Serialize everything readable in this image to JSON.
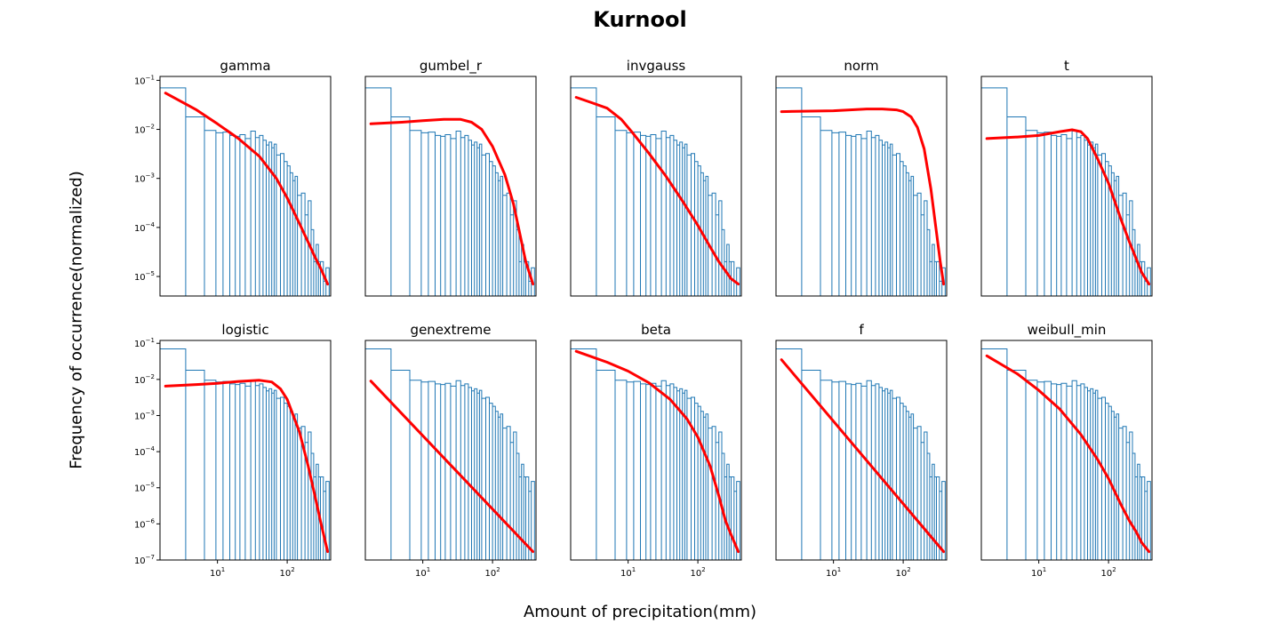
{
  "figure": {
    "title": "Kurnool",
    "xlabel": "Amount of precipitation(mm)",
    "ylabel": "Frequency of occurrence(normalized)"
  },
  "colors": {
    "hist": "#1f77b4",
    "fit": "#ff0000",
    "axis": "#000000"
  },
  "chart_data": {
    "type": "line",
    "xscale": "log",
    "yscale": "log",
    "xlim": [
      1.5,
      420
    ],
    "rows": [
      {
        "ylim": [
          4e-06,
          0.12
        ],
        "yticks": [
          0.1,
          0.01,
          0.001,
          0.0001,
          1e-05
        ],
        "ytick_labels": [
          [
            "10",
            "−1"
          ],
          [
            "10",
            "−2"
          ],
          [
            "10",
            "−3"
          ],
          [
            "10",
            "−4"
          ],
          [
            "10",
            "−5"
          ]
        ]
      },
      {
        "ylim": [
          1e-07,
          0.12
        ],
        "yticks": [
          0.1,
          0.01,
          0.001,
          0.0001,
          1e-05,
          1e-06,
          1e-07
        ],
        "ytick_labels": [
          [
            "10",
            "−1"
          ],
          [
            "10",
            "−2"
          ],
          [
            "10",
            "−3"
          ],
          [
            "10",
            "−4"
          ],
          [
            "10",
            "−5"
          ],
          [
            "10",
            "−6"
          ],
          [
            "10",
            "−7"
          ]
        ]
      }
    ],
    "xticks": [
      10,
      100
    ],
    "xtick_labels": [
      [
        "10",
        "1"
      ],
      [
        "10",
        "2"
      ]
    ],
    "histogram": {
      "edges": [
        1.5,
        3.5,
        6.5,
        9.5,
        12,
        15,
        18,
        21,
        25,
        30,
        35,
        40,
        45,
        50,
        55,
        60,
        65,
        70,
        80,
        90,
        100,
        110,
        120,
        130,
        140,
        160,
        180,
        200,
        220,
        240,
        260,
        280,
        300,
        330,
        360,
        400
      ],
      "values": [
        0.07,
        0.018,
        0.0095,
        0.0085,
        0.0088,
        0.0075,
        0.0072,
        0.0078,
        0.0065,
        0.0092,
        0.0068,
        0.0075,
        0.006,
        0.0048,
        0.0055,
        0.0042,
        0.005,
        0.003,
        0.0032,
        0.0022,
        0.0018,
        0.0013,
        0.0009,
        0.0011,
        0.00045,
        0.0005,
        0.00018,
        0.00035,
        9e-05,
        2e-05,
        4.5e-05,
        2e-05,
        2e-05,
        8e-06,
        1.5e-05
      ]
    },
    "panels": [
      {
        "name": "gamma",
        "row": 0,
        "col": 0,
        "fit": {
          "x": [
            1.8,
            5,
            10,
            20,
            40,
            70,
            100,
            150,
            200,
            250,
            300,
            380
          ],
          "y": [
            0.055,
            0.025,
            0.013,
            0.0065,
            0.0028,
            0.001,
            0.0004,
            0.00012,
            5e-05,
            2.5e-05,
            1.5e-05,
            7e-06
          ]
        }
      },
      {
        "name": "gumbel_r",
        "row": 0,
        "col": 1,
        "fit": {
          "x": [
            1.8,
            5,
            10,
            20,
            35,
            50,
            70,
            100,
            150,
            200,
            300,
            380
          ],
          "y": [
            0.013,
            0.014,
            0.015,
            0.016,
            0.016,
            0.014,
            0.01,
            0.0045,
            0.0012,
            0.0003,
            2e-05,
            7e-06
          ]
        }
      },
      {
        "name": "invgauss",
        "row": 0,
        "col": 2,
        "fit": {
          "x": [
            1.8,
            3,
            5,
            8,
            12,
            20,
            35,
            60,
            100,
            150,
            200,
            300,
            380
          ],
          "y": [
            0.045,
            0.035,
            0.027,
            0.016,
            0.008,
            0.0032,
            0.0011,
            0.00035,
            0.00011,
            4e-05,
            2e-05,
            9e-06,
            7e-06
          ]
        }
      },
      {
        "name": "norm",
        "row": 0,
        "col": 3,
        "fit": {
          "x": [
            1.8,
            10,
            30,
            50,
            80,
            100,
            130,
            160,
            200,
            250,
            300,
            340,
            380
          ],
          "y": [
            0.023,
            0.024,
            0.026,
            0.026,
            0.025,
            0.023,
            0.018,
            0.011,
            0.004,
            0.0006,
            8e-05,
            2e-05,
            7e-06
          ]
        }
      },
      {
        "name": "t",
        "row": 0,
        "col": 4,
        "fit": {
          "x": [
            1.8,
            5,
            10,
            20,
            30,
            40,
            50,
            70,
            100,
            150,
            200,
            300,
            380
          ],
          "y": [
            0.0065,
            0.007,
            0.0075,
            0.009,
            0.0098,
            0.009,
            0.0065,
            0.0025,
            0.0008,
            0.00015,
            5e-05,
            1.2e-05,
            7e-06
          ]
        }
      },
      {
        "name": "logistic",
        "row": 1,
        "col": 0,
        "fit": {
          "x": [
            1.8,
            5,
            10,
            20,
            40,
            60,
            80,
            100,
            150,
            200,
            250,
            300,
            380
          ],
          "y": [
            0.0065,
            0.0072,
            0.0078,
            0.0088,
            0.0095,
            0.0085,
            0.0055,
            0.0028,
            0.00035,
            4e-05,
            6e-06,
            1.2e-06,
            1.7e-07
          ]
        }
      },
      {
        "name": "genextreme",
        "row": 1,
        "col": 1,
        "fit": {
          "x": [
            1.8,
            380
          ],
          "y": [
            0.009,
            1.7e-07
          ]
        }
      },
      {
        "name": "beta",
        "row": 1,
        "col": 2,
        "fit": {
          "x": [
            1.8,
            5,
            10,
            20,
            40,
            70,
            100,
            150,
            200,
            250,
            300,
            380
          ],
          "y": [
            0.06,
            0.03,
            0.017,
            0.008,
            0.0028,
            0.0008,
            0.00025,
            4e-05,
            6e-06,
            1.2e-06,
            5e-07,
            1.7e-07
          ]
        }
      },
      {
        "name": "f",
        "row": 1,
        "col": 3,
        "fit": {
          "x": [
            1.8,
            380
          ],
          "y": [
            0.035,
            1.7e-07
          ]
        }
      },
      {
        "name": "weibull_min",
        "row": 1,
        "col": 4,
        "fit": {
          "x": [
            1.8,
            5,
            10,
            20,
            40,
            70,
            100,
            150,
            200,
            250,
            300,
            380
          ],
          "y": [
            0.045,
            0.014,
            0.005,
            0.0015,
            0.0003,
            6e-05,
            1.8e-05,
            3.5e-06,
            1.2e-06,
            6e-07,
            3e-07,
            1.7e-07
          ]
        }
      }
    ]
  }
}
